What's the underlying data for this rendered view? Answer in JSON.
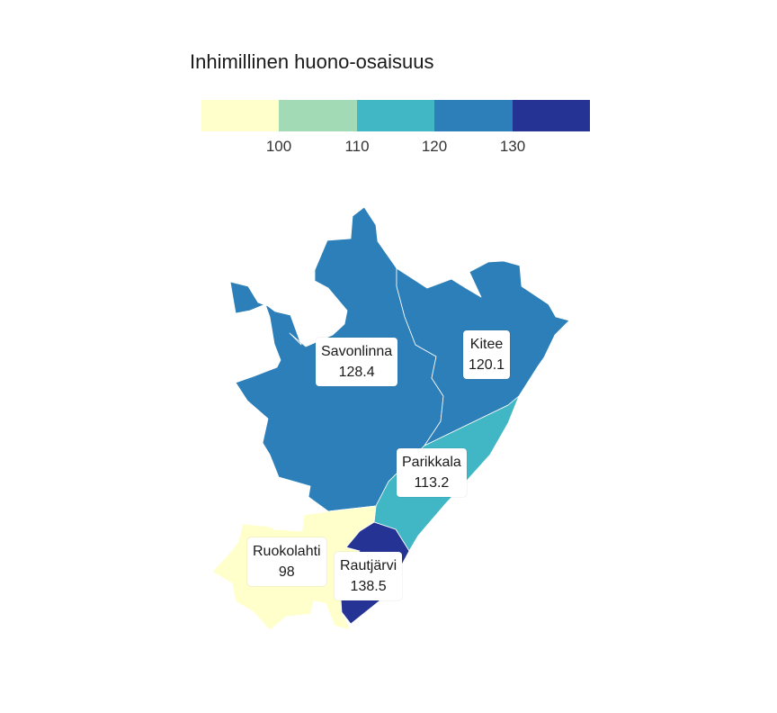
{
  "legend": {
    "title": "Inhimillinen huono-osaisuus",
    "breaks": [
      "100",
      "110",
      "120",
      "130"
    ],
    "colors": [
      "#ffffcc",
      "#a1dab4",
      "#41b6c4",
      "#2c7fb8",
      "#253494"
    ]
  },
  "regions": [
    {
      "name": "Savonlinna",
      "value": "128.4",
      "color": "#2c7fb8"
    },
    {
      "name": "Kitee",
      "value": "120.1",
      "color": "#2c7fb8"
    },
    {
      "name": "Parikkala",
      "value": "113.2",
      "color": "#41b6c4"
    },
    {
      "name": "Ruokolahti",
      "value": "98",
      "color": "#ffffcc"
    },
    {
      "name": "Rautjärvi",
      "value": "138.5",
      "color": "#253494"
    }
  ]
}
